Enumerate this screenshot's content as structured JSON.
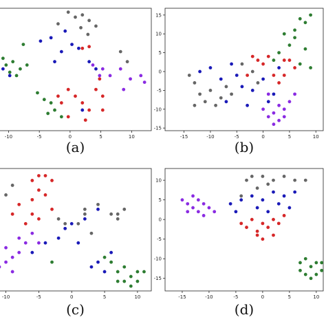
{
  "chart_data": [
    {
      "type": "scatter",
      "title": "(a)",
      "xlim": [
        -11.5,
        13.2
      ],
      "xticks": [
        -10,
        -5,
        0,
        5,
        10
      ],
      "ylim": [
        -10,
        12
      ],
      "series": [
        {
          "color": "#666666",
          "x": [
            -0.3,
            0.85,
            2.0,
            3.1,
            1.75,
            4.2,
            2.9,
            -1.95,
            8.2,
            9.3
          ],
          "values": [
            11.3,
            10.4,
            10.8,
            9.8,
            8.5,
            8.8,
            7.3,
            9.2,
            4.2,
            2.4
          ]
        },
        {
          "color": "#1a1ab8",
          "x": [
            -4.8,
            -3.1,
            -0.8,
            0.3,
            -1.4,
            1.4,
            -2.5,
            4.2,
            3.1,
            -9.8,
            -10.9,
            2.0
          ],
          "values": [
            6.1,
            6.7,
            7.9,
            5.5,
            4.2,
            4.8,
            2.4,
            1.1,
            2.4,
            -0.1,
            1.1,
            -6.3
          ]
        },
        {
          "color": "#d62728",
          "x": [
            2.0,
            3.1,
            -0.3,
            0.85,
            2.0,
            3.1,
            4.2,
            5.3,
            -1.4,
            -0.3,
            2.5,
            5.3,
            4.8,
            -1.95
          ],
          "values": [
            4.8,
            5.1,
            -2.6,
            -3.8,
            -5.0,
            -6.3,
            -2.6,
            -3.8,
            -5.0,
            -7.5,
            -8.1,
            -6.3,
            -0.7,
            -3.8
          ]
        },
        {
          "color": "#8a2be2",
          "x": [
            3.7,
            5.3,
            6.5,
            8.2,
            9.8,
            11.5,
            12.1,
            8.7,
            4.8
          ],
          "values": [
            1.8,
            1.1,
            -0.1,
            1.1,
            -0.7,
            -0.1,
            -1.3,
            -2.6,
            -0.1
          ]
        },
        {
          "color": "#2e7d32",
          "x": [
            -10.9,
            -10.4,
            -9.3,
            -8.1,
            -9.8,
            -8.7,
            -7.0,
            -7.6,
            -5.3,
            -4.2,
            -3.1,
            -2.5,
            -1.4,
            -3.6
          ],
          "values": [
            3.0,
            1.8,
            2.4,
            1.1,
            0.5,
            -0.1,
            1.8,
            5.5,
            -3.2,
            -4.4,
            -5.0,
            -6.3,
            -7.5,
            -6.9
          ]
        }
      ]
    },
    {
      "type": "scatter",
      "title": "(b)",
      "xlim": [
        -18.6,
        11.4
      ],
      "xticks": [
        -15,
        -10,
        -5,
        0,
        5,
        10
      ],
      "ylim": [
        -15.7,
        16.8
      ],
      "yticks": [
        -15,
        -10,
        -5,
        0,
        5,
        10,
        15
      ],
      "series": [
        {
          "color": "#2e7d32",
          "x": [
            7,
            8,
            9,
            6,
            4,
            5,
            3,
            8,
            7,
            9,
            2,
            6
          ],
          "values": [
            14,
            13,
            15,
            11,
            10,
            7,
            5,
            6,
            2,
            1,
            3,
            9
          ]
        },
        {
          "color": "#666666",
          "x": [
            -14,
            -13,
            -12,
            -11,
            -10,
            -9,
            -8,
            -13,
            -7,
            -6,
            -4,
            -2,
            -1
          ],
          "values": [
            -1,
            -3,
            -6,
            -8,
            -5,
            -9,
            -7,
            -9,
            -4,
            -6,
            2,
            0,
            -3
          ]
        },
        {
          "color": "#1a1ab8",
          "x": [
            -12,
            -10,
            -8,
            -6,
            -5,
            -4,
            -3,
            -2,
            0,
            1,
            2,
            3,
            -7
          ],
          "values": [
            0,
            1,
            -2,
            2,
            -1,
            -4,
            -9,
            -5,
            -2,
            -8,
            -6,
            1,
            -8
          ]
        },
        {
          "color": "#d62728",
          "x": [
            -2,
            -1,
            0,
            1,
            2,
            3,
            4,
            5,
            6,
            4,
            -3
          ],
          "values": [
            4,
            3,
            2,
            4,
            -1,
            -3,
            -1,
            3,
            1,
            3,
            -1
          ]
        },
        {
          "color": "#8a2be2",
          "x": [
            0,
            1,
            2,
            3,
            4,
            5,
            2,
            3,
            1,
            4,
            6
          ],
          "values": [
            -10,
            -12,
            -11,
            -13,
            -10,
            -8,
            -14,
            -9,
            -6,
            -12,
            -6
          ]
        }
      ]
    },
    {
      "type": "scatter",
      "title": "(c)",
      "xlim": [
        -11,
        12.1
      ],
      "xticks": [
        -10,
        -5,
        0,
        5,
        10
      ],
      "ylim": [
        -13,
        12.5
      ],
      "series": [
        {
          "color": "#d62728",
          "x": [
            -6,
            -5,
            -4,
            -3,
            -5,
            -4,
            -6,
            -8,
            -9,
            -6,
            -5,
            -7,
            -3
          ],
          "values": [
            10,
            11,
            11,
            10,
            8,
            7,
            6,
            5,
            3,
            3,
            2,
            1,
            4
          ]
        },
        {
          "color": "#666666",
          "x": [
            -10,
            -9,
            4,
            6,
            7,
            8,
            7,
            2,
            1,
            -2,
            -1,
            3,
            2
          ],
          "values": [
            7,
            9,
            5,
            3,
            3,
            4,
            2,
            3,
            1,
            2,
            1,
            -1,
            4
          ]
        },
        {
          "color": "#1a1ab8",
          "x": [
            -1,
            0,
            2,
            -2,
            -4,
            -6,
            3,
            4,
            5,
            1,
            6,
            4
          ],
          "values": [
            0,
            1,
            2,
            -2,
            -3,
            -5,
            -8,
            -7,
            -9,
            -3,
            -5,
            4
          ]
        },
        {
          "color": "#8a2be2",
          "x": [
            -11,
            -10,
            -9,
            -8,
            -10,
            -7,
            -6,
            -8,
            -5,
            -9
          ],
          "values": [
            -8,
            -7,
            -6,
            -5,
            -4,
            -3,
            -1,
            -2,
            -3,
            -9
          ]
        },
        {
          "color": "#2e7d32",
          "x": [
            -3,
            7,
            8,
            9,
            10,
            8,
            7,
            9,
            6,
            10,
            11,
            5
          ],
          "values": [
            -7,
            -9,
            -11,
            -10,
            -9,
            -8,
            -11,
            -12,
            -7,
            -11,
            -9,
            -6
          ]
        }
      ]
    },
    {
      "type": "scatter",
      "title": "(d)",
      "xlim": [
        -18.2,
        11.3
      ],
      "xticks": [
        -15,
        -10,
        -5,
        0,
        5,
        10
      ],
      "ylim": [
        -18.2,
        13
      ],
      "yticks": [
        -15,
        -10,
        -5,
        0,
        5,
        10
      ],
      "series": [
        {
          "color": "#8a2be2",
          "x": [
            -15,
            -14,
            -13,
            -12,
            -11,
            -12,
            -14,
            -13,
            -10,
            -11,
            -9
          ],
          "values": [
            5,
            4,
            3,
            5,
            4,
            2,
            2,
            6,
            3,
            1,
            2
          ]
        },
        {
          "color": "#666666",
          "x": [
            -3,
            -2,
            0,
            2,
            4,
            6,
            8,
            -1,
            1,
            -4
          ],
          "values": [
            10,
            11,
            11,
            10,
            11,
            10,
            10,
            8,
            9,
            6
          ]
        },
        {
          "color": "#1a1ab8",
          "x": [
            -6,
            -4,
            -2,
            0,
            2,
            4,
            6,
            -1,
            1,
            3,
            5,
            -5
          ],
          "values": [
            4,
            5,
            6,
            5,
            7,
            6,
            7,
            3,
            2,
            4,
            3,
            2
          ]
        },
        {
          "color": "#d62728",
          "x": [
            -4,
            -3,
            -2,
            -1,
            0,
            1,
            2,
            3,
            4,
            2,
            0,
            -1
          ],
          "values": [
            -1,
            -2,
            0,
            -3,
            -1,
            -2,
            0,
            -1,
            1,
            -4,
            -5,
            -4
          ]
        },
        {
          "color": "#2e7d32",
          "x": [
            7,
            8,
            9,
            10,
            11,
            10,
            8,
            9,
            11,
            7
          ],
          "values": [
            -13,
            -10,
            -12,
            -11,
            -13,
            -14,
            -14,
            -15,
            -11,
            -11
          ]
        }
      ]
    }
  ]
}
